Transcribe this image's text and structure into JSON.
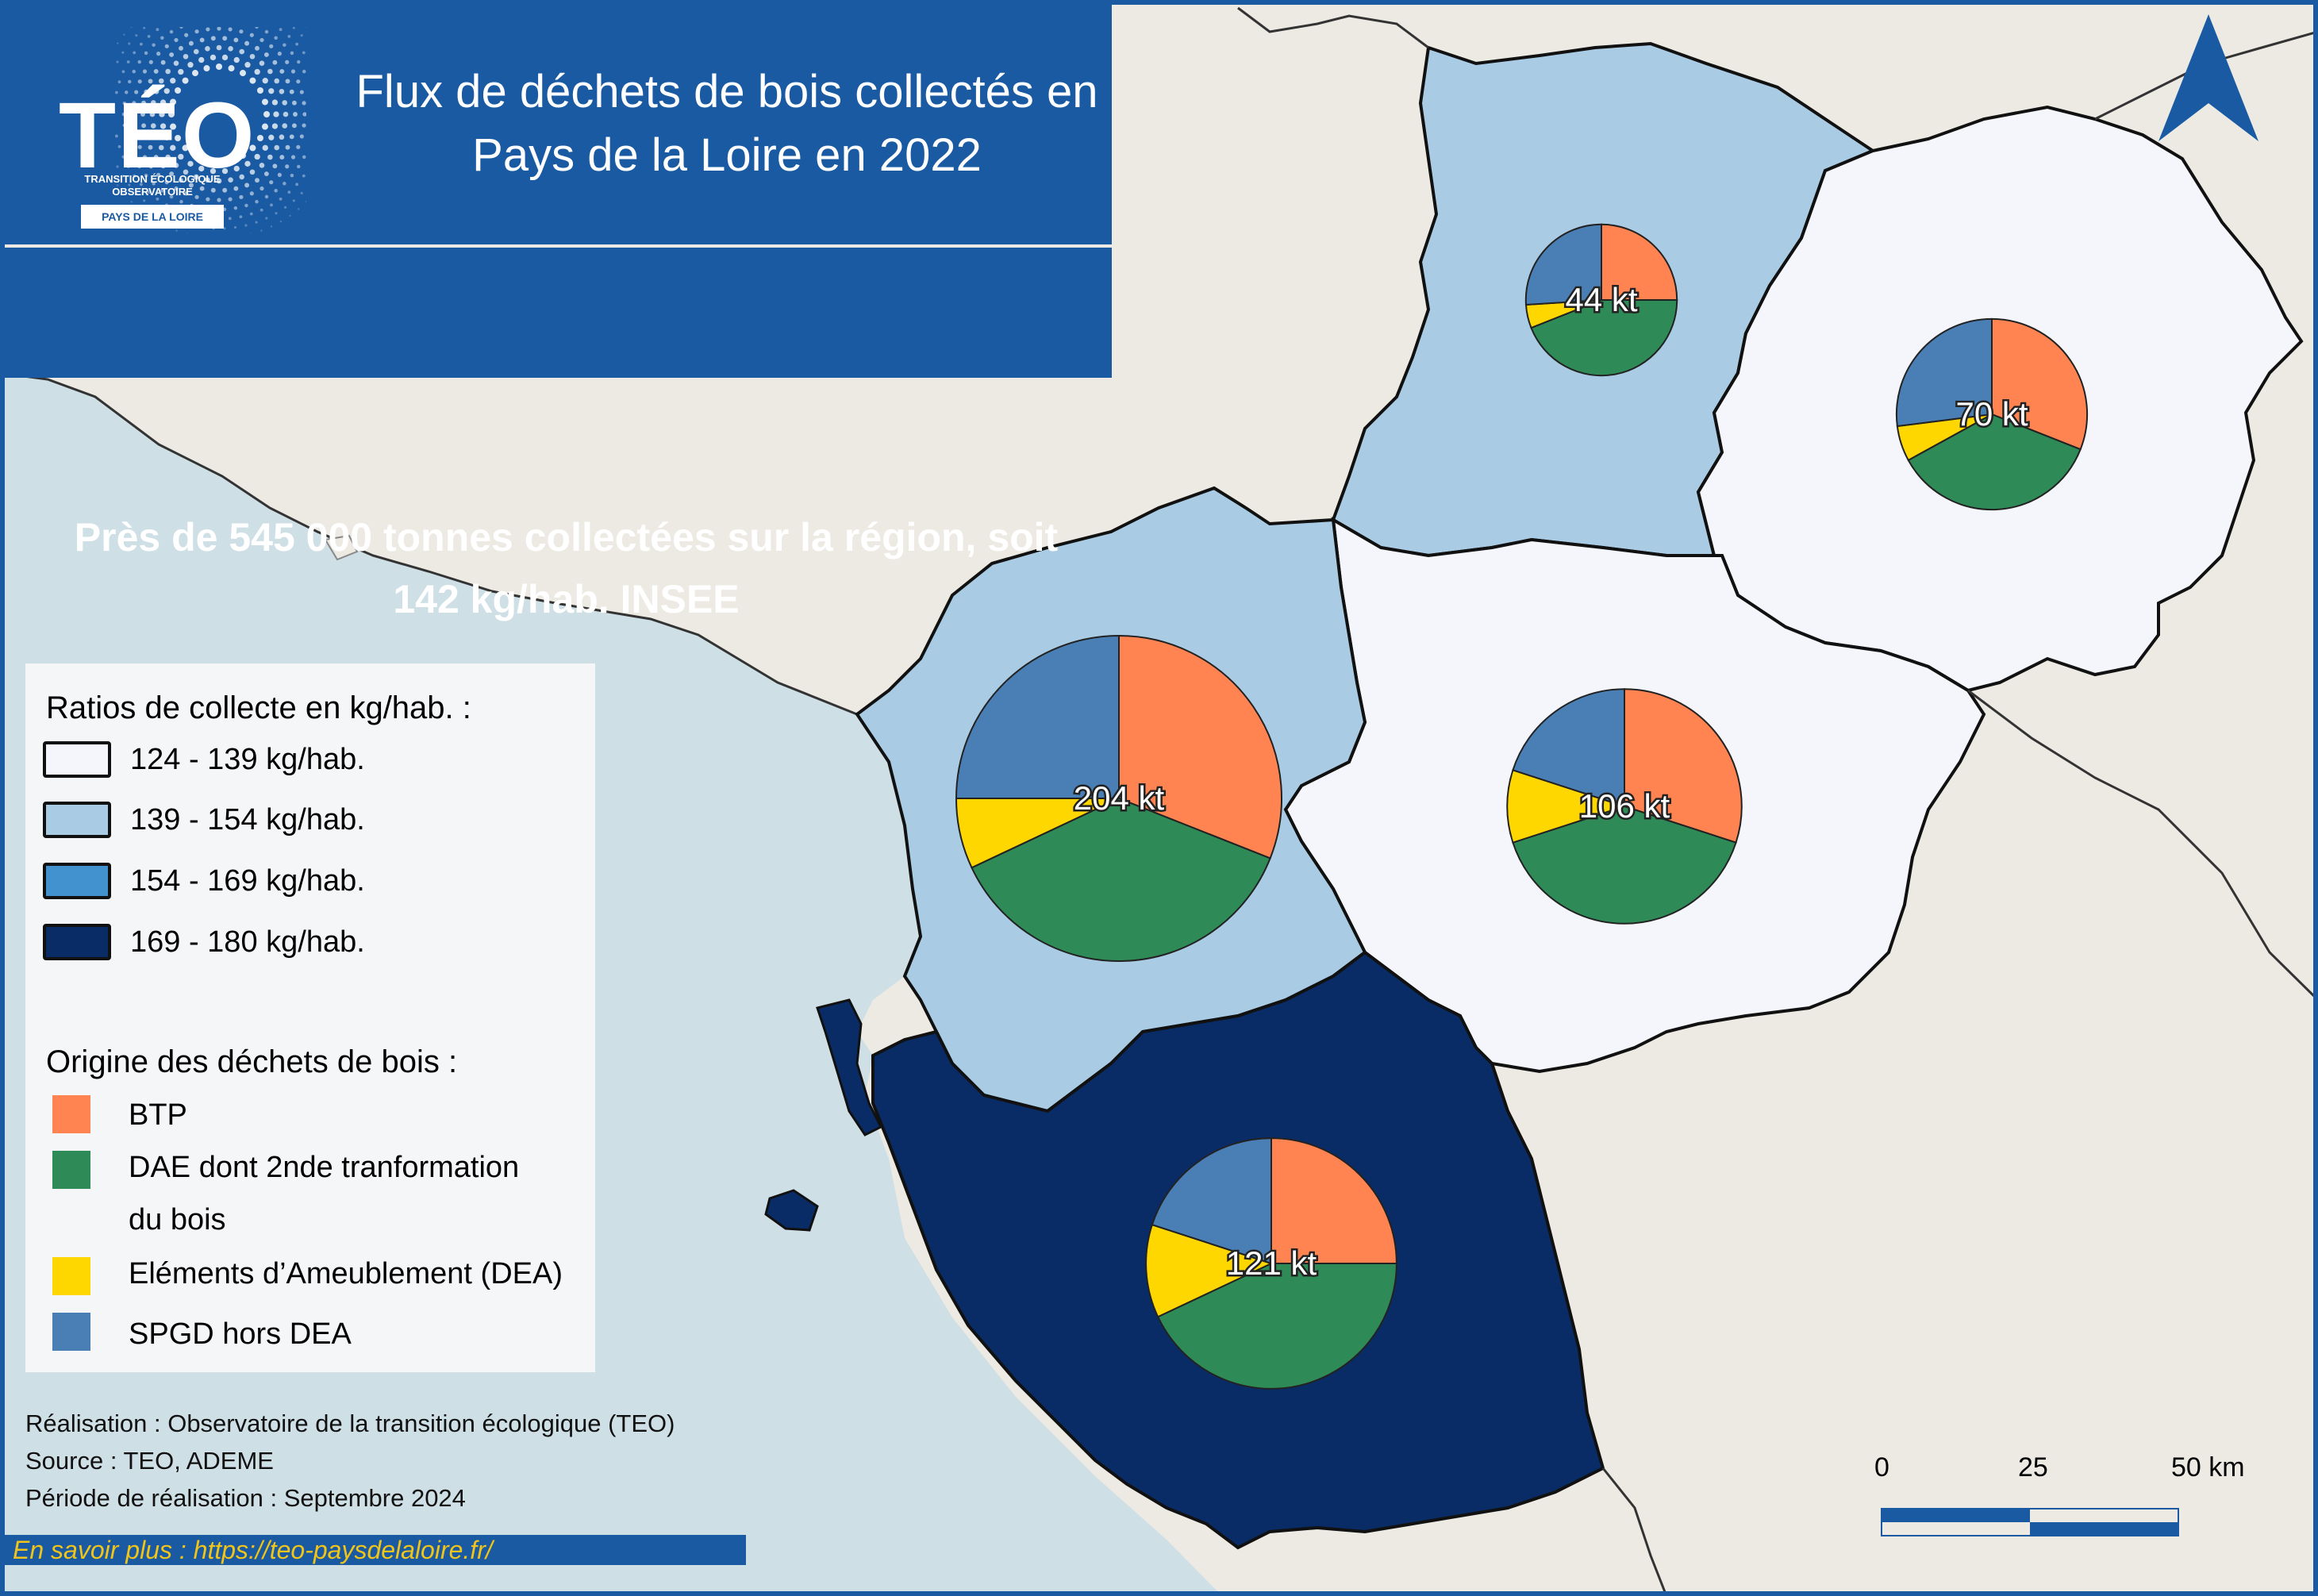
{
  "title": {
    "line1": "Flux de déchets de bois collectés en",
    "line2": "Pays de la Loire en 2022"
  },
  "subtitle": {
    "line1": "Près de 545 000 tonnes collectées sur la région, soit",
    "line2": "142 kg/hab. INSEE"
  },
  "logo": {
    "name": "TÉO",
    "subline1": "TRANSITION ÉCOLOGIQUE",
    "subline2": "OBSERVATOIRE",
    "region": "PAYS DE LA LOIRE"
  },
  "colors": {
    "btp": "#ff8452",
    "dae": "#2e8b57",
    "dea": "#ffd700",
    "spgd": "#4a7fb5",
    "ratio_124_139": "#f4f6fb",
    "ratio_139_154": "#a9cbe3",
    "ratio_154_169": "#4192ce",
    "ratio_169_180": "#0a2c66",
    "sea": "#cfdfe6",
    "land": "#eceae3",
    "brand": "#1a5aa3"
  },
  "legend": {
    "ratio_heading": "Ratios de collecte en kg/hab. :",
    "ratios": [
      {
        "label": "124 - 139 kg/hab.",
        "color": "#f4f6fb"
      },
      {
        "label": "139 - 154 kg/hab.",
        "color": "#a9cbe3"
      },
      {
        "label": "154 - 169 kg/hab.",
        "color": "#4192ce"
      },
      {
        "label": "169 - 180 kg/hab.",
        "color": "#0a2c66"
      }
    ],
    "origin_heading": "Origine des déchets de bois :",
    "origins": [
      {
        "label": "BTP",
        "color": "#ff8452"
      },
      {
        "label": "DAE dont 2nde tranformation",
        "label2": "du bois",
        "color": "#2e8b57"
      },
      {
        "label": "Eléments d’Ameublement (DEA)",
        "color": "#ffd700"
      },
      {
        "label": "SPGD hors DEA",
        "color": "#4a7fb5"
      }
    ]
  },
  "departments": [
    {
      "id": "mayenne",
      "ratio_class": "139 - 154 kg/hab.",
      "fill": "#a9cbe3",
      "total_label": "44 kt",
      "total_kt": 44,
      "shares": {
        "BTP": 0.25,
        "DAE": 0.44,
        "DEA": 0.05,
        "SPGD": 0.26
      }
    },
    {
      "id": "sarthe",
      "ratio_class": "124 - 139 kg/hab.",
      "fill": "#f4f6fb",
      "total_label": "70 kt",
      "total_kt": 70,
      "shares": {
        "BTP": 0.31,
        "DAE": 0.36,
        "DEA": 0.06,
        "SPGD": 0.27
      }
    },
    {
      "id": "loire-atlantique",
      "ratio_class": "139 - 154 kg/hab.",
      "fill": "#a9cbe3",
      "total_label": "204 kt",
      "total_kt": 204,
      "shares": {
        "BTP": 0.31,
        "DAE": 0.37,
        "DEA": 0.07,
        "SPGD": 0.25
      }
    },
    {
      "id": "maine-et-loire",
      "ratio_class": "124 - 139 kg/hab.",
      "fill": "#f4f6fb",
      "total_label": "106 kt",
      "total_kt": 106,
      "shares": {
        "BTP": 0.3,
        "DAE": 0.4,
        "DEA": 0.1,
        "SPGD": 0.2
      }
    },
    {
      "id": "vendee",
      "ratio_class": "169 - 180 kg/hab.",
      "fill": "#0a2c66",
      "total_label": "121 kt",
      "total_kt": 121,
      "shares": {
        "BTP": 0.25,
        "DAE": 0.43,
        "DEA": 0.12,
        "SPGD": 0.2
      }
    }
  ],
  "credits": {
    "line1": "Réalisation : Observatoire de la transition écologique (TEO)",
    "line2": "Source : TEO, ADEME",
    "line3": "Période de réalisation : Septembre 2024"
  },
  "link": {
    "text": "En savoir plus : https://teo-paysdelaloire.fr/"
  },
  "scale": {
    "label_0": "0",
    "label_25": "25",
    "label_50": "50 km"
  }
}
